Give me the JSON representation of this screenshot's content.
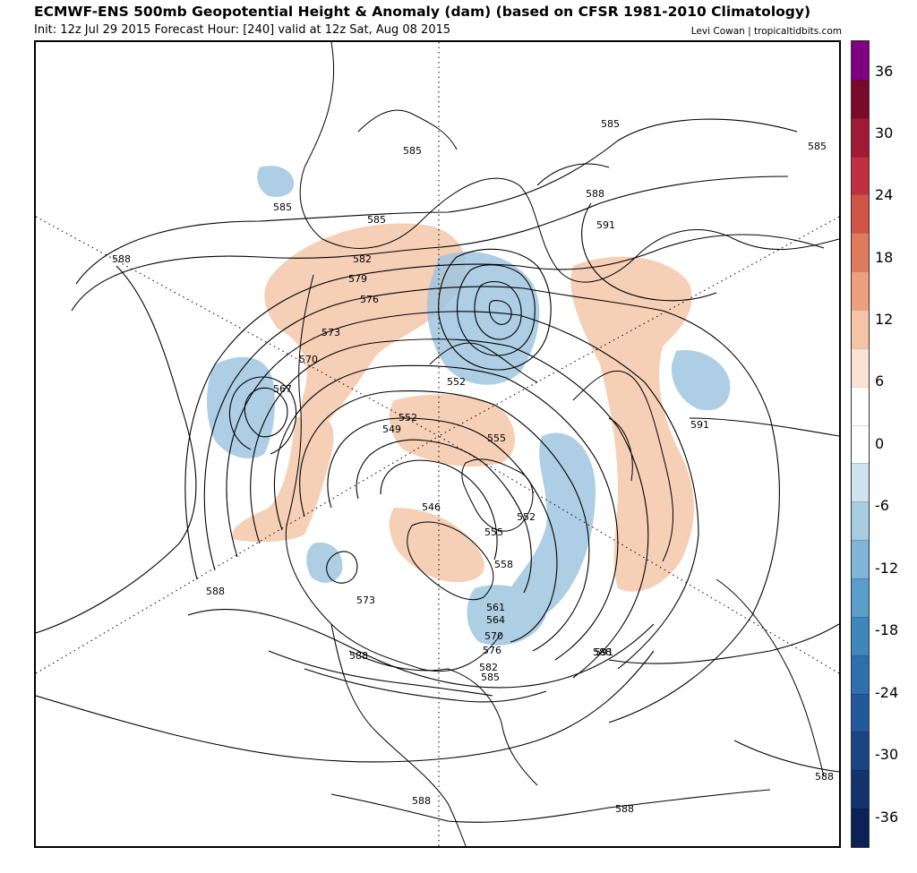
{
  "header": {
    "title": "ECMWF-ENS 500mb Geopotential Height & Anomaly (dam) (based on CFSR 1981-2010 Climatology)",
    "subtitle": "Init: 12z Jul 29 2015   Forecast Hour: [240]   valid at 12z Sat, Aug 08 2015",
    "credit": "Levi Cowan | tropicaltidbits.com"
  },
  "colorbar": {
    "ticks": [
      "36",
      "30",
      "24",
      "18",
      "12",
      "6",
      "0",
      "-6",
      "-12",
      "-18",
      "-24",
      "-30",
      "-36"
    ],
    "colors": [
      "#800080",
      "#7a0a2a",
      "#9e1a35",
      "#c03040",
      "#d05545",
      "#e07a5c",
      "#eda07e",
      "#f5c4a6",
      "#fbe2d2",
      "#ffffff",
      "#ffffff",
      "#d0e4ef",
      "#a8cde3",
      "#7fb5d6",
      "#5a9dc9",
      "#3f86bc",
      "#2f6fae",
      "#22599c",
      "#1a4585",
      "#12336d",
      "#0c2155"
    ]
  },
  "map": {
    "contour_labels": [
      "585",
      "585",
      "588",
      "591",
      "585",
      "585",
      "588",
      "582",
      "579",
      "576",
      "573",
      "570",
      "567",
      "585",
      "552",
      "552",
      "549",
      "555",
      "546",
      "552",
      "555",
      "558",
      "561",
      "564",
      "570",
      "576",
      "582",
      "585",
      "573",
      "588",
      "588",
      "591",
      "591",
      "588",
      "588",
      "588",
      "588"
    ]
  },
  "icons": {
    "polar-grid": "dotted-latlon-lines"
  }
}
